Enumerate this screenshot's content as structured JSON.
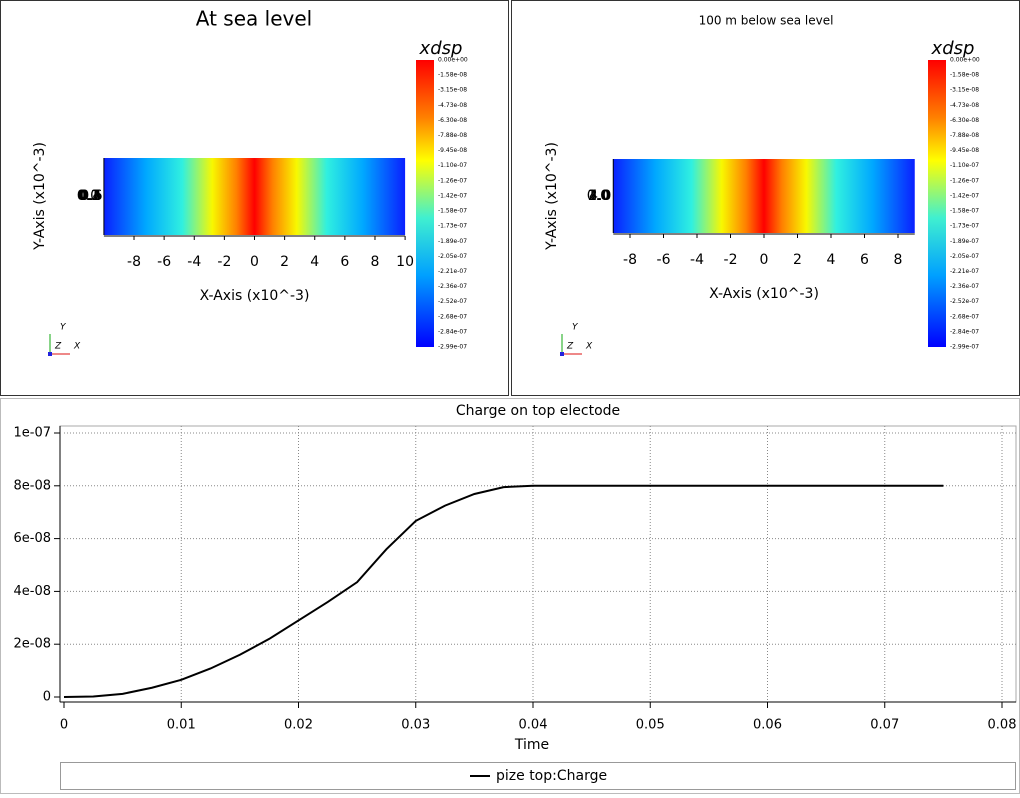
{
  "views": [
    {
      "title": "At sea level",
      "colorbar_title": "xdsp",
      "colorbar_labels": [
        "0.00e+00",
        "-1.58e-08",
        "-3.15e-08",
        "-4.73e-08",
        "-6.30e-08",
        "-7.88e-08",
        "-9.45e-08",
        "-1.10e-07",
        "-1.26e-07",
        "-1.42e-07",
        "-1.58e-07",
        "-1.73e-07",
        "-1.89e-07",
        "-2.05e-07",
        "-2.21e-07",
        "-2.36e-07",
        "-2.52e-07",
        "-2.68e-07",
        "-2.84e-07",
        "-2.99e-07"
      ],
      "x_axis_label": "X-Axis (x10^-3)",
      "y_axis_label": "Y-Axis (x10^-3)",
      "xlim": [
        -10,
        10
      ],
      "xticks": [
        -8,
        -6,
        -4,
        -2,
        0,
        2,
        4,
        6,
        8,
        10
      ],
      "yticks": [
        "0.0",
        "0.1",
        "0.2",
        "0.3",
        "0.4",
        "0.5",
        "0.6"
      ],
      "triad": [
        "Y",
        "Z",
        "X"
      ]
    },
    {
      "title": "100 m below sea level",
      "colorbar_title": "xdsp",
      "colorbar_labels": [
        "0.00e+00",
        "-1.58e-08",
        "-3.15e-08",
        "-4.73e-08",
        "-6.30e-08",
        "-7.88e-08",
        "-9.45e-08",
        "-1.10e-07",
        "-1.26e-07",
        "-1.42e-07",
        "-1.58e-07",
        "-1.73e-07",
        "-1.89e-07",
        "-2.05e-07",
        "-2.21e-07",
        "-2.36e-07",
        "-2.52e-07",
        "-2.68e-07",
        "-2.84e-07",
        "-2.99e-07"
      ],
      "x_axis_label": "X-Axis (x10^-3)",
      "y_axis_label": "Y-Axis (x10^-3)",
      "xlim": [
        -9,
        9
      ],
      "xticks": [
        -8,
        -6,
        -4,
        -2,
        0,
        2,
        4,
        6,
        8
      ],
      "yticks": [
        "0.0",
        "1.0",
        "2.0",
        "3.0",
        "4.0"
      ],
      "triad": [
        "Y",
        "Z",
        "X"
      ]
    }
  ],
  "chart_data": {
    "type": "line",
    "title": "Charge on top electode",
    "x_label": "Time",
    "x": [
      0,
      0.0025,
      0.005,
      0.0075,
      0.01,
      0.0125,
      0.015,
      0.0175,
      0.02,
      0.0225,
      0.025,
      0.0275,
      0.03,
      0.0325,
      0.035,
      0.0375,
      0.04,
      0.075
    ],
    "series": [
      {
        "name": "pize top:Charge",
        "color": "#000000",
        "values": [
          0,
          2e-10,
          1.2e-09,
          3.5e-09,
          6.5e-09,
          1.08e-08,
          1.6e-08,
          2.2e-08,
          2.9e-08,
          3.6e-08,
          4.35e-08,
          5.6e-08,
          6.67e-08,
          7.25e-08,
          7.69e-08,
          7.95e-08,
          8e-08,
          8e-08
        ]
      }
    ],
    "xlim": [
      0,
      0.08
    ],
    "xticks": [
      0,
      0.01,
      0.02,
      0.03,
      0.04,
      0.05,
      0.06,
      0.07,
      0.08
    ],
    "ylim": [
      0,
      1e-07
    ],
    "yticks": [
      0,
      {
        "value": 2e-08,
        "label": "2e-08"
      },
      {
        "value": 4e-08,
        "label": "4e-08"
      },
      {
        "value": 6e-08,
        "label": "6e-08"
      },
      {
        "value": 8e-08,
        "label": "8e-08"
      },
      {
        "value": 1e-07,
        "label": "1e-07"
      }
    ],
    "grid": true
  }
}
